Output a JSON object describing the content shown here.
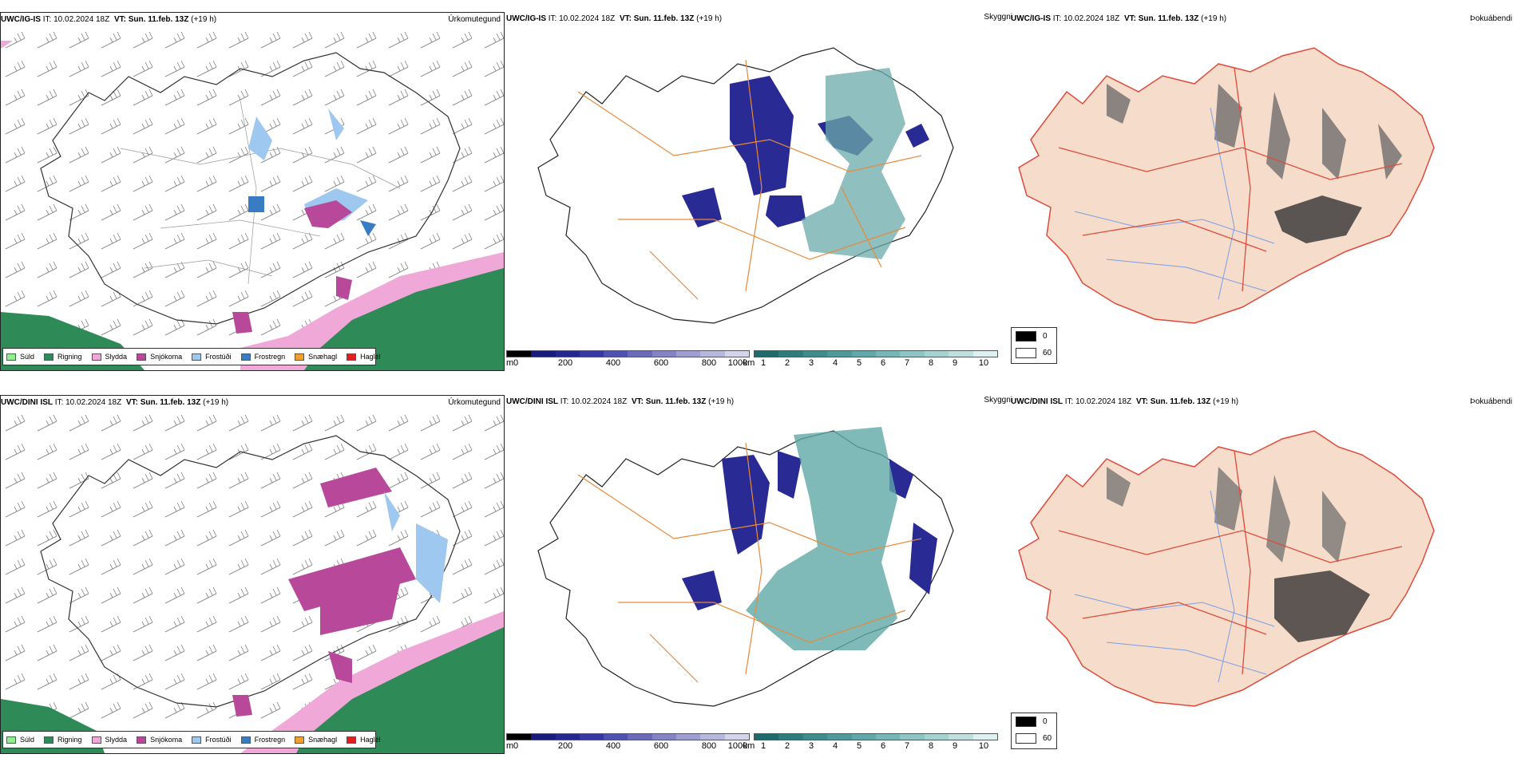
{
  "panels": [
    {
      "model": "UWC/IG-IS",
      "it_label": "IT:",
      "it_value": "10.02.2024 18Z",
      "vt_label": "VT:",
      "vt_value": "Sun. 11.feb. 13Z",
      "lead": "(+19 h)",
      "title": "Úrkomutegund"
    },
    {
      "model": "UWC/IG-IS",
      "it_label": "IT:",
      "it_value": "10.02.2024 18Z",
      "vt_label": "VT:",
      "vt_value": "Sun. 11.feb. 13Z",
      "lead": "(+19 h)",
      "title": "Skyggni"
    },
    {
      "model": "UWC/IG-IS",
      "it_label": "IT:",
      "it_value": "10.02.2024 18Z",
      "vt_label": "VT:",
      "vt_value": "Sun. 11.feb. 13Z",
      "lead": "(+19 h)",
      "title": "Þokuábendi"
    },
    {
      "model": "UWC/DINI ISL",
      "it_label": "IT:",
      "it_value": "10.02.2024 18Z",
      "vt_label": "VT:",
      "vt_value": "Sun. 11.feb. 13Z",
      "lead": "(+19 h)",
      "title": "Úrkomutegund"
    },
    {
      "model": "UWC/DINI ISL",
      "it_label": "IT:",
      "it_value": "10.02.2024 18Z",
      "vt_label": "VT:",
      "vt_value": "Sun. 11.feb. 13Z",
      "lead": "(+19 h)",
      "title": "Skyggni"
    },
    {
      "model": "UWC/DINI ISL",
      "it_label": "IT:",
      "it_value": "10.02.2024 18Z",
      "vt_label": "VT:",
      "vt_value": "Sun. 11.feb. 13Z",
      "lead": "(+19 h)",
      "title": "Þokuábendi"
    }
  ],
  "precip_legend": [
    {
      "label": "Súld",
      "color": "#90ee90"
    },
    {
      "label": "Rigning",
      "color": "#2e8b57"
    },
    {
      "label": "Slydda",
      "color": "#f0a8d8"
    },
    {
      "label": "Snjókoma",
      "color": "#b8489a"
    },
    {
      "label": "Frostúði",
      "color": "#9ec8f0"
    },
    {
      "label": "Frostregn",
      "color": "#3a7cc4"
    },
    {
      "label": "Snæhagl",
      "color": "#f0a030"
    },
    {
      "label": "Haglél",
      "color": "#e02020"
    }
  ],
  "visibility_scale_m": {
    "unit": "m",
    "ticks": [
      "0",
      "200",
      "400",
      "600",
      "800",
      "1000"
    ],
    "colors": [
      "#000000",
      "#1a1a7a",
      "#26268f",
      "#3838a5",
      "#5050b0",
      "#6a6ab8",
      "#8484c4",
      "#9e9ed0",
      "#b8b8dc",
      "#d4d4ea"
    ]
  },
  "visibility_scale_km": {
    "unit": "km",
    "ticks": [
      "1",
      "2",
      "3",
      "4",
      "5",
      "6",
      "7",
      "8",
      "9",
      "10"
    ],
    "colors": [
      "#1f6b6b",
      "#2f7c7c",
      "#3e8c8c",
      "#4e9a9a",
      "#62a8a8",
      "#78b6b6",
      "#8ec4c4",
      "#a6d2d2",
      "#c0e0e0",
      "#e0f0f0"
    ]
  },
  "fog_legend": [
    {
      "label": "0",
      "color": "#000000"
    },
    {
      "label": "60",
      "color": "#ffffff"
    }
  ],
  "colors": {
    "land_fog": "#f5dccb",
    "road_orange": "#e88a3a",
    "road_red": "#e04a3a",
    "river_blue": "#7a9ee8",
    "outline": "#222222"
  }
}
